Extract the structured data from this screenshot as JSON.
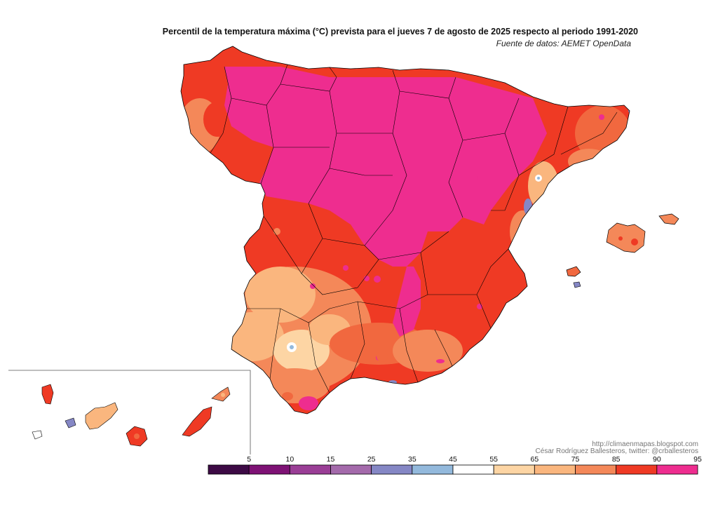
{
  "title": "Percentil de la temperatura máxima (°C) prevista para el jueves 7 de agosto de 2025 respecto al periodo 1991-2020",
  "source": "Fuente de datos: AEMET OpenData",
  "credits": {
    "blog": "http://climaenmapas.blogspot.com",
    "author": "César Rodríguez Ballesteros, twitter: @crballesteros"
  },
  "legend": {
    "tick_labels": [
      "5",
      "10",
      "15",
      "25",
      "35",
      "45",
      "55",
      "65",
      "75",
      "85",
      "90",
      "95"
    ],
    "colors": [
      "#3d0a45",
      "#7e1275",
      "#9a3e96",
      "#a46aab",
      "#8587c5",
      "#93b9dc",
      "#ffffff",
      "#fdd5a4",
      "#fab67e",
      "#f48859",
      "#ef3a24",
      "#ee2d8f"
    ]
  },
  "palette": {
    "p97": "#ee2d8f",
    "p93": "#ef3a24",
    "p88": "#f1683f",
    "p80": "#f48859",
    "p70": "#fab67e",
    "p60": "#fdd5a4",
    "p40": "#93b9dc",
    "p30": "#8587c5",
    "border": "#000000"
  }
}
